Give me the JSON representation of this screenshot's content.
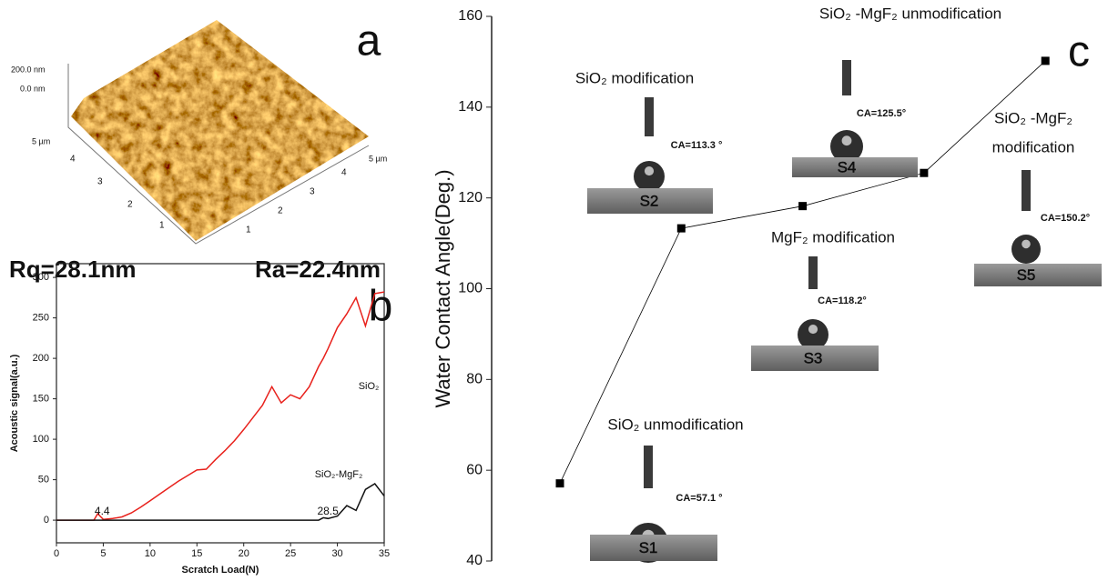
{
  "afm_panel": {
    "label": "a",
    "z_max": "200.0 nm",
    "z_min": "0.0 nm",
    "y_extent": "5 µm",
    "x_extent": "5 µm",
    "y_ticks": [
      "1",
      "2",
      "3",
      "4"
    ],
    "x_ticks": [
      "1",
      "2",
      "3",
      "4"
    ],
    "rq": "Rq=28.1nm",
    "ra": "Ra=22.4nm"
  },
  "chart_data": [
    {
      "type": "line",
      "panel_label": "b",
      "xlabel": "Scratch Load(N)",
      "ylabel": "Acoustic signal(a.u.)",
      "x": [
        0,
        1,
        2,
        3,
        4,
        4.4,
        5,
        6,
        7,
        8,
        9,
        10,
        11,
        12,
        13,
        14,
        15,
        16,
        17,
        18,
        19,
        20,
        21,
        22,
        23,
        24,
        25,
        26,
        27,
        28,
        28.5,
        29,
        30,
        31,
        32,
        33,
        34,
        35
      ],
      "series": [
        {
          "name": "SiO₂",
          "color": "#e8211c",
          "values": [
            0,
            0,
            0,
            0,
            0,
            8,
            1,
            2,
            4,
            9,
            16,
            24,
            32,
            40,
            48,
            55,
            62,
            63,
            75,
            86,
            98,
            112,
            127,
            142,
            165,
            145,
            155,
            150,
            165,
            190,
            200,
            212,
            238,
            255,
            275,
            240,
            280,
            282
          ]
        },
        {
          "name": "SiO₂-MgF₂",
          "color": "#111111",
          "values": [
            0,
            0,
            0,
            0,
            0,
            0,
            0,
            0,
            0,
            0,
            0,
            0,
            0,
            0,
            0,
            0,
            0,
            0,
            0,
            0,
            0,
            0,
            0,
            0,
            0,
            0,
            0,
            0,
            0,
            0,
            3,
            2,
            5,
            18,
            12,
            38,
            45,
            30
          ]
        }
      ],
      "critical_loads": [
        4.4,
        28.5
      ],
      "xlim": [
        0,
        35
      ],
      "xticks": [
        0,
        5,
        10,
        15,
        20,
        25,
        30,
        35
      ],
      "ylim": [
        -28,
        317
      ],
      "yticks": [
        0,
        50,
        100,
        150,
        200,
        250,
        300
      ]
    },
    {
      "type": "line",
      "panel_label": "c",
      "ylabel": "Water Contact Angle(Deg.)",
      "categories": [
        null,
        null,
        null,
        null,
        null
      ],
      "values": [
        57.1,
        113.3,
        118.2,
        125.5,
        150.2
      ],
      "value_labels": [
        "CA=57.1 °",
        "CA=113.3 °",
        "CA=118.2°",
        "CA=125.5°",
        "CA=150.2°"
      ],
      "color": "#000000",
      "sample_names": [
        "S1",
        "S2",
        "S3",
        "S4",
        "S5"
      ],
      "captions": [
        [
          "SiO₂ unmodification"
        ],
        [
          "SiO₂ modification"
        ],
        [
          "MgF₂ modification"
        ],
        [
          "SiO₂ -MgF₂ unmodification"
        ],
        [
          "SiO₂ -MgF₂",
          "modification"
        ]
      ],
      "ylim": [
        40,
        160
      ],
      "yticks": [
        40,
        60,
        80,
        100,
        120,
        140,
        160
      ]
    }
  ]
}
